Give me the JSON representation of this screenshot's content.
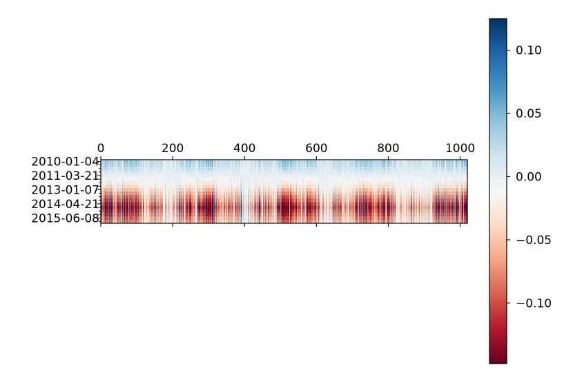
{
  "chart_data": {
    "type": "heatmap",
    "title": "",
    "xlabel": "",
    "ylabel": "",
    "x_ticks": [
      0,
      200,
      400,
      600,
      800,
      1000
    ],
    "xlim": [
      0,
      1020
    ],
    "y_tick_labels": [
      "2010-01-04",
      "2011-03-21",
      "2013-01-07",
      "2014-04-21",
      "2015-06-08"
    ],
    "n_columns": 1020,
    "n_rows": 18,
    "row_profile": [
      0.035,
      0.03,
      0.02,
      0.01,
      0.0,
      -0.01,
      -0.02,
      -0.03,
      -0.045,
      -0.06,
      -0.075,
      -0.09,
      -0.11,
      -0.13,
      -0.11,
      -0.095,
      -0.08,
      -0.07
    ],
    "colormap": "RdBu",
    "colormap_stops": [
      "#67001f",
      "#b2182b",
      "#d6604d",
      "#f4a582",
      "#fddbc7",
      "#f7f7f7",
      "#d1e5f0",
      "#92c5de",
      "#4393c3",
      "#2166ac",
      "#053061"
    ],
    "colorbar": {
      "vmin": -0.148,
      "vmax": 0.125,
      "ticks": [
        0.1,
        0.05,
        0.0,
        -0.05,
        -0.1
      ],
      "tick_labels": [
        "0.10",
        "0.05",
        "0.00",
        "−0.05",
        "−0.10"
      ]
    },
    "grid": false,
    "legend": "none"
  }
}
